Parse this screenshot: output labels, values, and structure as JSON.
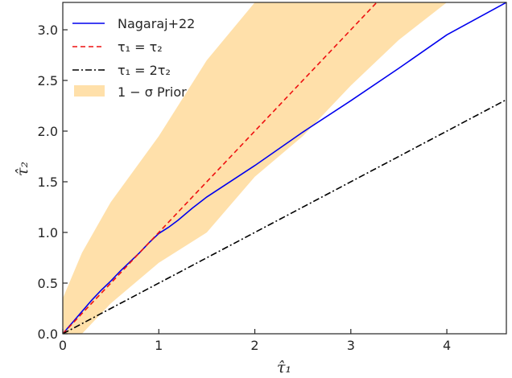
{
  "chart_data": {
    "type": "line",
    "title": "",
    "xlabel": "τ̂₁",
    "ylabel": "τ̂₂",
    "xlim": [
      0,
      4.62
    ],
    "ylim": [
      0,
      3.27
    ],
    "xticks": [
      0,
      1,
      2,
      3,
      4
    ],
    "yticks": [
      0.0,
      0.5,
      1.0,
      1.5,
      2.0,
      2.5,
      3.0
    ],
    "xtick_labels": [
      "0",
      "1",
      "2",
      "3",
      "4"
    ],
    "ytick_labels": [
      "0.0",
      "0.5",
      "1.0",
      "1.5",
      "2.0",
      "2.5",
      "3.0"
    ],
    "grid": false,
    "legend_position": "top-left",
    "series": [
      {
        "name": "Nagaraj+22",
        "style": "solid",
        "color": "#0000ee",
        "x": [
          0,
          0.1,
          0.2,
          0.3,
          0.4,
          0.5,
          0.6,
          0.7,
          0.8,
          0.9,
          1.0,
          1.1,
          1.2,
          1.35,
          1.5,
          2.0,
          2.5,
          3.0,
          3.5,
          4.0,
          4.62
        ],
        "y": [
          0,
          0.11,
          0.22,
          0.33,
          0.43,
          0.52,
          0.62,
          0.71,
          0.8,
          0.9,
          0.99,
          1.05,
          1.12,
          1.24,
          1.35,
          1.66,
          1.99,
          2.3,
          2.62,
          2.95,
          3.27
        ]
      },
      {
        "name": "τ₁ = τ₂",
        "style": "dashed",
        "color": "#ee1111",
        "x": [
          0,
          3.27
        ],
        "y": [
          0,
          3.27
        ]
      },
      {
        "name": "τ₁ = 2τ₂",
        "style": "dashdot",
        "color": "#000000",
        "x": [
          0,
          4.62
        ],
        "y": [
          0,
          2.31
        ]
      }
    ],
    "band": {
      "name": "1 − σ Prior",
      "color": "#ffe0aa",
      "x": [
        0,
        0.2,
        0.5,
        1.0,
        1.5,
        2.0,
        2.5,
        3.0,
        3.5,
        4.0
      ],
      "upper": [
        0.35,
        0.8,
        1.3,
        1.95,
        2.7,
        3.27,
        3.27,
        3.27,
        3.27,
        3.27
      ],
      "lower": [
        0,
        0,
        0.3,
        0.7,
        1.0,
        1.55,
        1.95,
        2.45,
        2.9,
        3.27
      ]
    },
    "legend": {
      "entries": [
        "Nagaraj+22",
        "τ₁ = τ₂",
        "τ₁ = 2τ₂",
        "1 − σ Prior"
      ]
    }
  }
}
